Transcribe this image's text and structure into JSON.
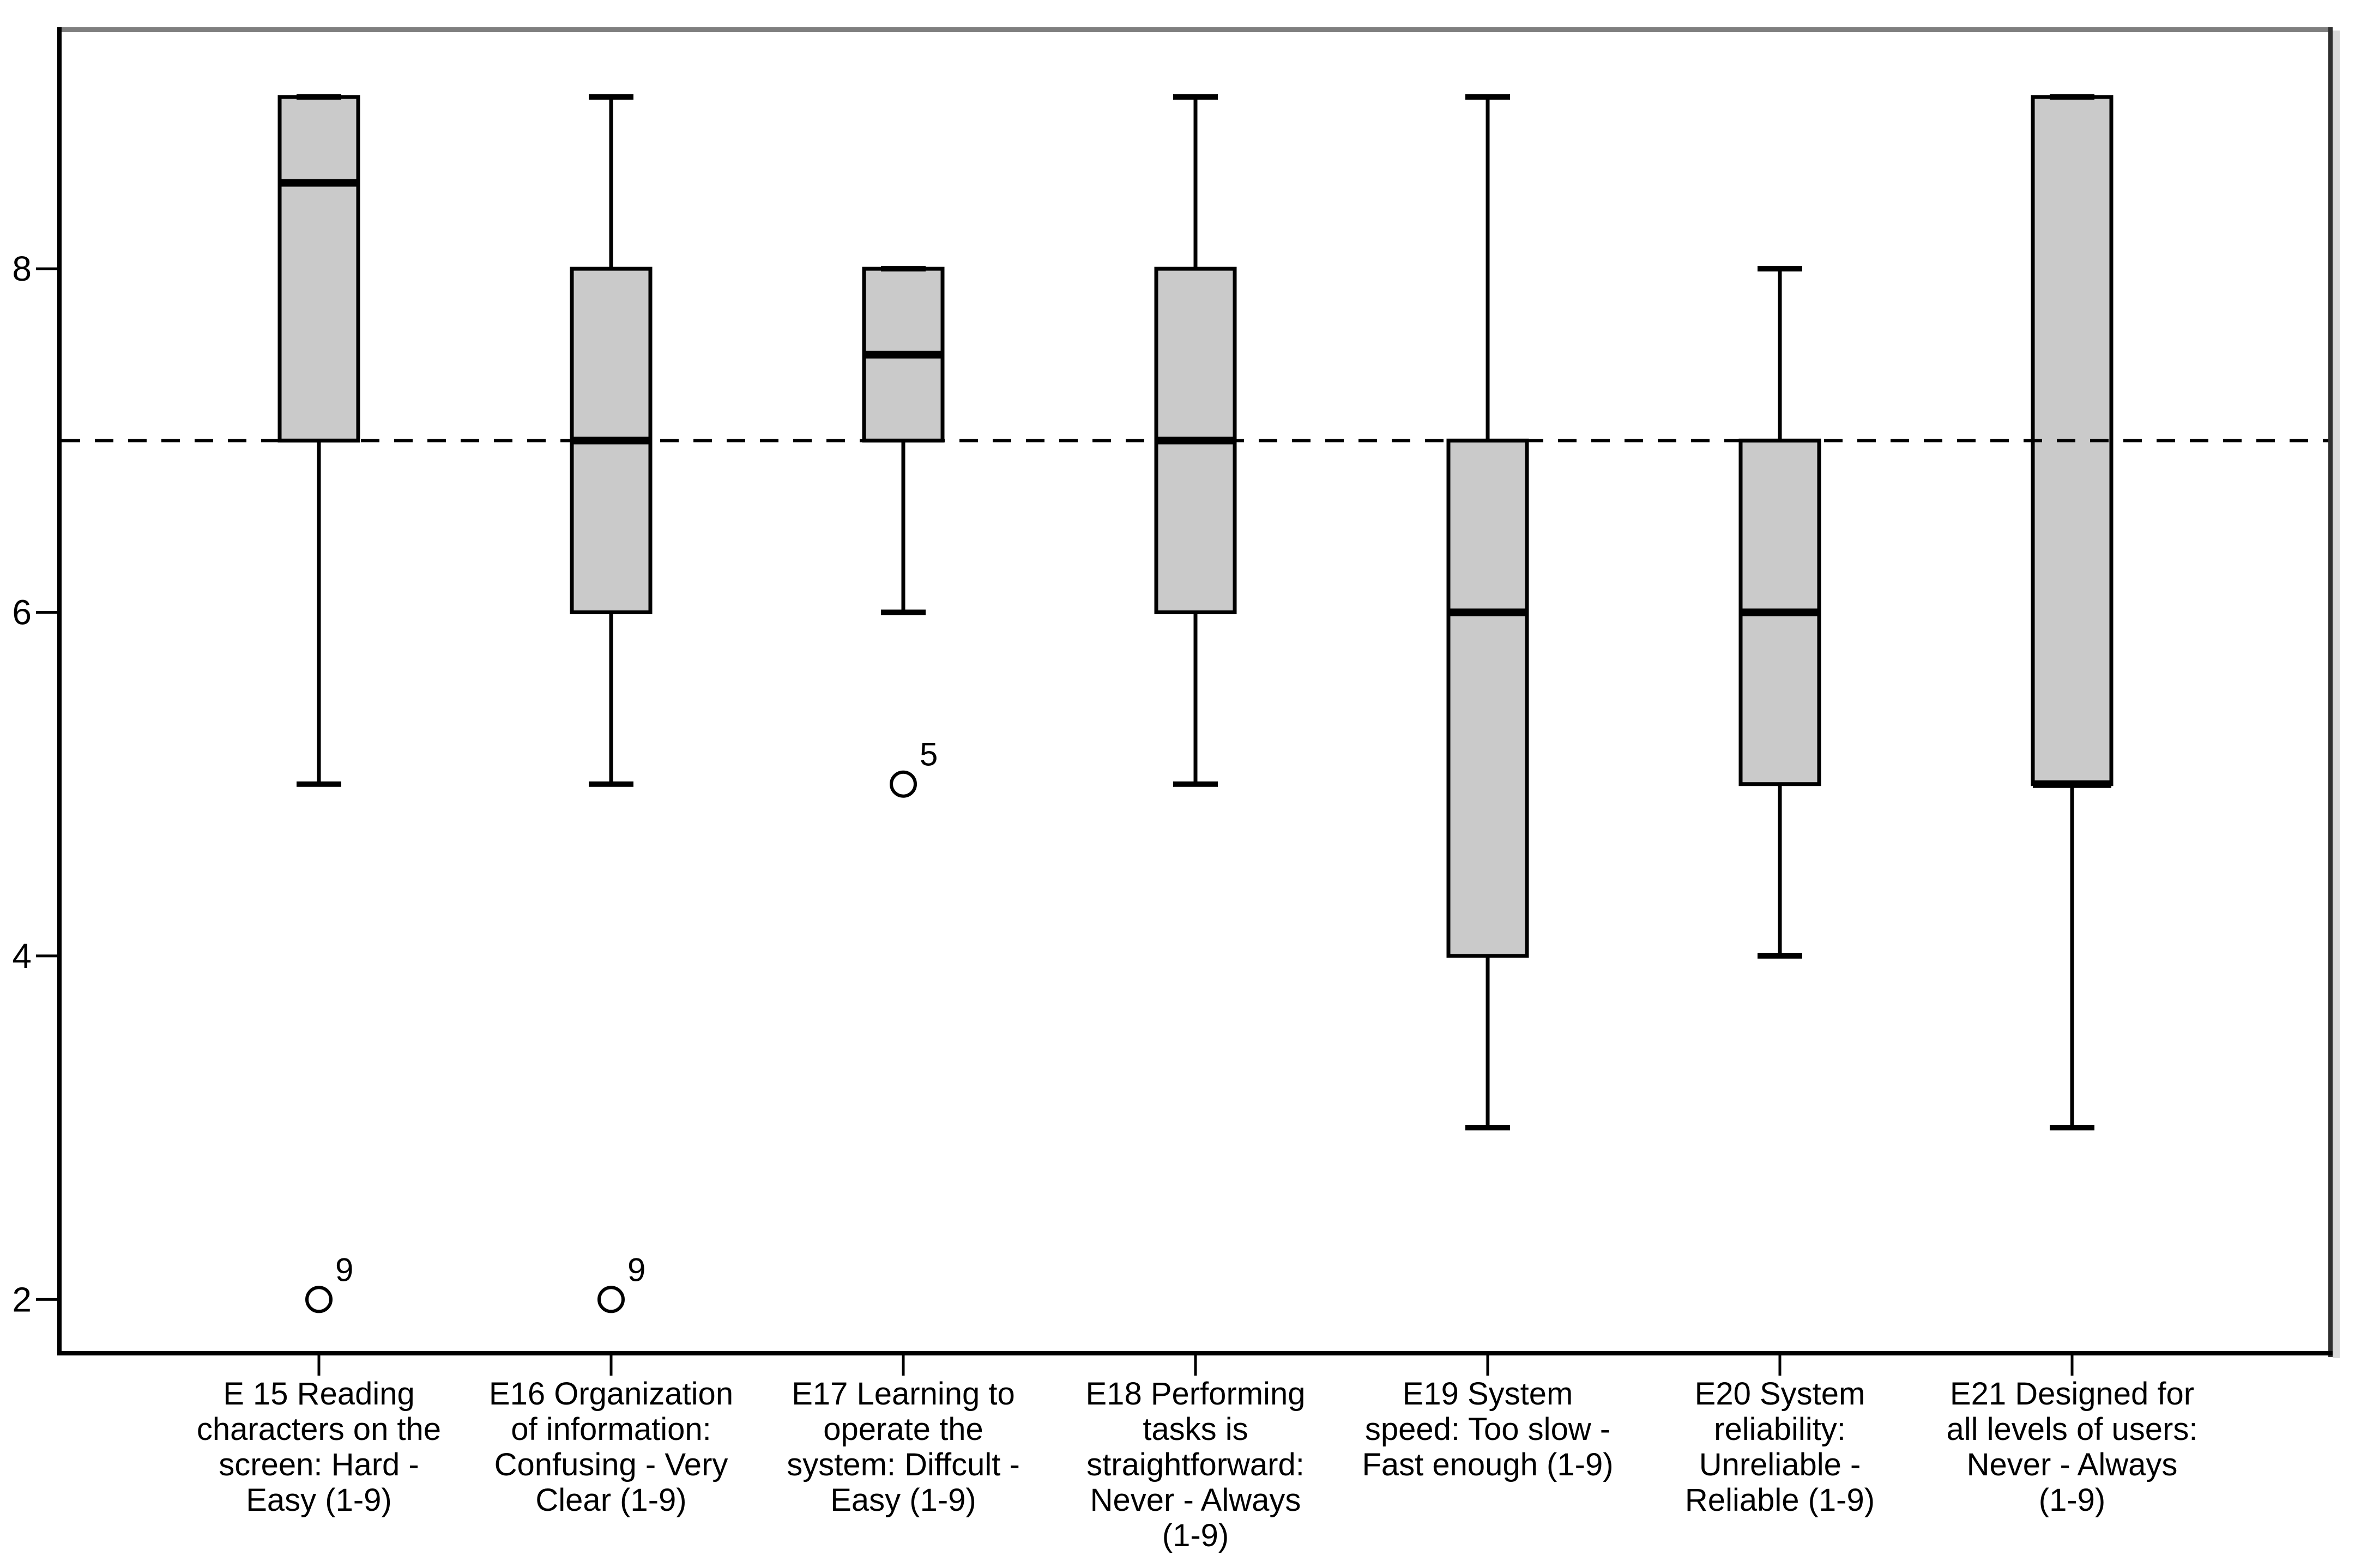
{
  "figure": {
    "background": "#ffffff",
    "frame": {
      "top_color": "#7f7f7f",
      "right_color": "#2f2f2f",
      "right_shadow_color": "#d9d9d9",
      "axis_color": "#000000"
    }
  },
  "chart_data": {
    "type": "boxplot",
    "title": "",
    "xlabel": "",
    "ylabel": "",
    "ylim": [
      1.69,
      9.39
    ],
    "yticks": [
      2,
      4,
      6,
      8
    ],
    "grid": false,
    "legend": "none",
    "reference_line": {
      "value": 7,
      "style": "dashed",
      "color": "#000000"
    },
    "box_fill": "#cacaca",
    "box_border": "#000000",
    "categories": [
      {
        "code": "E 15",
        "label": "E 15 Reading characters on the screen: Hard - Easy (1-9)",
        "label_lines": [
          "E 15 Reading",
          "characters on the",
          "screen: Hard -",
          "Easy (1-9)"
        ],
        "q1": 7,
        "median": 8.5,
        "q3": 9,
        "whisker_low": 5,
        "whisker_high": 9,
        "outliers": [
          {
            "value": 2,
            "label": "9"
          }
        ]
      },
      {
        "code": "E16",
        "label": "E16 Organization of information: Confusing - Very Clear (1-9)",
        "label_lines": [
          "E16 Organization",
          "of information:",
          "Confusing - Very",
          "Clear (1-9)"
        ],
        "q1": 6,
        "median": 7,
        "q3": 8,
        "whisker_low": 5,
        "whisker_high": 9,
        "outliers": [
          {
            "value": 2,
            "label": "9"
          }
        ]
      },
      {
        "code": "E17",
        "label": "E17 Learning to operate the system: Diffcult - Easy (1-9)",
        "label_lines": [
          "E17 Learning to",
          "operate the",
          "system: Diffcult -",
          "Easy (1-9)"
        ],
        "q1": 7,
        "median": 7.5,
        "q3": 8,
        "whisker_low": 6,
        "whisker_high": 8,
        "outliers": [
          {
            "value": 5,
            "label": "5"
          }
        ]
      },
      {
        "code": "E18",
        "label": "E18 Performing tasks is straightforward: Never - Always (1-9)",
        "label_lines": [
          "E18 Performing",
          "tasks is",
          "straightforward:",
          "Never - Always",
          "(1-9)"
        ],
        "q1": 6,
        "median": 7,
        "q3": 8,
        "whisker_low": 5,
        "whisker_high": 9,
        "outliers": []
      },
      {
        "code": "E19",
        "label": "E19 System speed: Too slow - Fast enough (1-9)",
        "label_lines": [
          "E19 System",
          "speed: Too slow -",
          "Fast enough (1-9)"
        ],
        "q1": 4,
        "median": 6,
        "q3": 7,
        "whisker_low": 3,
        "whisker_high": 9,
        "outliers": []
      },
      {
        "code": "E20",
        "label": "E20 System reliability: Unreliable - Reliable (1-9)",
        "label_lines": [
          "E20 System",
          "reliability:",
          "Unreliable -",
          "Reliable (1-9)"
        ],
        "q1": 5,
        "median": 6,
        "q3": 7,
        "whisker_low": 4,
        "whisker_high": 8,
        "outliers": []
      },
      {
        "code": "E21",
        "label": "E21 Designed for all levels of users: Never - Always (1-9)",
        "label_lines": [
          "E21 Designed for",
          "all levels of users:",
          "Never - Always",
          "(1-9)"
        ],
        "q1": 5,
        "median": 5,
        "q3": 9,
        "whisker_low": 3,
        "whisker_high": 9,
        "outliers": []
      }
    ]
  }
}
